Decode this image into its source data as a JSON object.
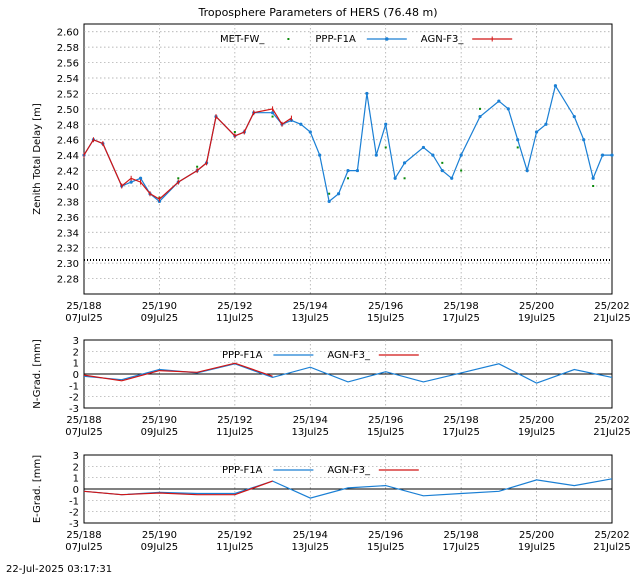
{
  "title": "Troposphere Parameters of HERS (76.48 m)",
  "footer_timestamp": "22-Jul-2025 03:17:31",
  "colors": {
    "MET-FW_": "#0b8a0b",
    "PPP-F1A": "#1a7fd4",
    "AGN-F3_": "#d11515",
    "grid": "#a0a0a0",
    "zero_line": "#000000"
  },
  "x_axis": {
    "range": [
      "2025-07-07",
      "2025-07-21"
    ],
    "ticks": [
      {
        "date": "2025-07-07",
        "doy": "25/188",
        "label": "07Jul25"
      },
      {
        "date": "2025-07-09",
        "doy": "25/190",
        "label": "09Jul25"
      },
      {
        "date": "2025-07-11",
        "doy": "25/192",
        "label": "11Jul25"
      },
      {
        "date": "2025-07-13",
        "doy": "25/194",
        "label": "13Jul25"
      },
      {
        "date": "2025-07-15",
        "doy": "25/196",
        "label": "15Jul25"
      },
      {
        "date": "2025-07-17",
        "doy": "25/198",
        "label": "17Jul25"
      },
      {
        "date": "2025-07-19",
        "doy": "25/200",
        "label": "19Jul25"
      },
      {
        "date": "2025-07-21",
        "doy": "25/202",
        "label": "21Jul25"
      }
    ]
  },
  "chart_data": [
    {
      "type": "line",
      "title": "Troposphere Parameters of HERS (76.48 m)",
      "ylabel": "Zenith Total Delay [m]",
      "ylim": [
        2.26,
        2.61
      ],
      "yticks": [
        "2.28",
        "2.30",
        "2.32",
        "2.34",
        "2.36",
        "2.38",
        "2.40",
        "2.42",
        "2.44",
        "2.46",
        "2.48",
        "2.50",
        "2.52",
        "2.54",
        "2.56",
        "2.58",
        "2.60"
      ],
      "grid": true,
      "legend": "top",
      "series": [
        {
          "name": "MET-FW_",
          "style": "dots",
          "x": [
            "2025-07-07T00:00",
            "2025-07-07T12:00",
            "2025-07-08T00:00",
            "2025-07-08T12:00",
            "2025-07-09T00:00",
            "2025-07-09T12:00",
            "2025-07-10T00:00",
            "2025-07-10T12:00",
            "2025-07-11T00:00",
            "2025-07-11T12:00",
            "2025-07-12T00:00",
            "2025-07-12T12:00",
            "2025-07-13T00:00",
            "2025-07-13T12:00",
            "2025-07-14T00:00",
            "2025-07-14T12:00",
            "2025-07-15T00:00",
            "2025-07-15T12:00",
            "2025-07-16T00:00",
            "2025-07-16T12:00",
            "2025-07-17T00:00",
            "2025-07-17T12:00",
            "2025-07-18T00:00",
            "2025-07-18T12:00",
            "2025-07-19T00:00",
            "2025-07-19T12:00",
            "2025-07-20T00:00",
            "2025-07-20T12:00",
            "2025-07-21T00:00"
          ],
          "y": [
            2.44,
            2.455,
            2.4,
            2.41,
            2.385,
            2.41,
            2.425,
            2.49,
            2.47,
            2.495,
            2.49,
            2.485,
            2.47,
            2.39,
            2.41,
            2.52,
            2.45,
            2.41,
            2.45,
            2.43,
            2.42,
            2.5,
            2.51,
            2.45,
            2.47,
            2.53,
            2.49,
            2.4,
            2.44
          ]
        },
        {
          "name": "PPP-F1A",
          "style": "line-points",
          "x": [
            "2025-07-07T00:00",
            "2025-07-07T06:00",
            "2025-07-07T12:00",
            "2025-07-08T00:00",
            "2025-07-08T06:00",
            "2025-07-08T12:00",
            "2025-07-08T18:00",
            "2025-07-09T00:00",
            "2025-07-09T12:00",
            "2025-07-10T00:00",
            "2025-07-10T06:00",
            "2025-07-10T12:00",
            "2025-07-11T00:00",
            "2025-07-11T06:00",
            "2025-07-11T12:00",
            "2025-07-12T00:00",
            "2025-07-12T06:00",
            "2025-07-12T12:00",
            "2025-07-12T18:00",
            "2025-07-13T00:00",
            "2025-07-13T06:00",
            "2025-07-13T12:00",
            "2025-07-13T18:00",
            "2025-07-14T00:00",
            "2025-07-14T06:00",
            "2025-07-14T12:00",
            "2025-07-14T18:00",
            "2025-07-15T00:00",
            "2025-07-15T06:00",
            "2025-07-15T12:00",
            "2025-07-16T00:00",
            "2025-07-16T06:00",
            "2025-07-16T12:00",
            "2025-07-16T18:00",
            "2025-07-17T00:00",
            "2025-07-17T12:00",
            "2025-07-18T00:00",
            "2025-07-18T06:00",
            "2025-07-18T12:00",
            "2025-07-18T18:00",
            "2025-07-19T00:00",
            "2025-07-19T06:00",
            "2025-07-19T12:00",
            "2025-07-20T00:00",
            "2025-07-20T06:00",
            "2025-07-20T12:00",
            "2025-07-20T18:00",
            "2025-07-21T00:00"
          ],
          "y": [
            2.44,
            2.46,
            2.455,
            2.4,
            2.405,
            2.41,
            2.39,
            2.38,
            2.405,
            2.42,
            2.43,
            2.49,
            2.465,
            2.47,
            2.495,
            2.495,
            2.48,
            2.485,
            2.48,
            2.47,
            2.44,
            2.38,
            2.39,
            2.42,
            2.42,
            2.52,
            2.44,
            2.48,
            2.41,
            2.43,
            2.45,
            2.44,
            2.42,
            2.41,
            2.44,
            2.49,
            2.51,
            2.5,
            2.46,
            2.42,
            2.47,
            2.48,
            2.53,
            2.49,
            2.46,
            2.41,
            2.44,
            2.44
          ]
        },
        {
          "name": "AGN-F3_",
          "style": "line-ticks",
          "x": [
            "2025-07-07T00:00",
            "2025-07-07T06:00",
            "2025-07-07T12:00",
            "2025-07-08T00:00",
            "2025-07-08T06:00",
            "2025-07-08T12:00",
            "2025-07-08T18:00",
            "2025-07-09T00:00",
            "2025-07-09T12:00",
            "2025-07-10T00:00",
            "2025-07-10T06:00",
            "2025-07-10T12:00",
            "2025-07-11T00:00",
            "2025-07-11T06:00",
            "2025-07-11T12:00",
            "2025-07-12T00:00",
            "2025-07-12T06:00",
            "2025-07-12T12:00"
          ],
          "y": [
            2.44,
            2.46,
            2.455,
            2.4,
            2.41,
            2.405,
            2.39,
            2.383,
            2.405,
            2.42,
            2.43,
            2.49,
            2.465,
            2.47,
            2.495,
            2.5,
            2.48,
            2.488
          ]
        },
        {
          "name": "",
          "style": "dotted-baseline",
          "x": [
            "2025-07-07T00:00",
            "2025-07-21T00:00"
          ],
          "y": [
            2.304,
            2.304
          ]
        }
      ]
    },
    {
      "type": "line",
      "ylabel": "N-Grad. [mm]",
      "ylim": [
        -3,
        3
      ],
      "yticks": [
        "-3",
        "-2",
        "-1",
        "0",
        "1",
        "2",
        "3"
      ],
      "grid": true,
      "legend": "top",
      "series": [
        {
          "name": "PPP-F1A",
          "x": [
            "2025-07-07",
            "2025-07-08",
            "2025-07-09",
            "2025-07-10",
            "2025-07-11",
            "2025-07-12",
            "2025-07-13",
            "2025-07-14",
            "2025-07-15",
            "2025-07-16",
            "2025-07-17",
            "2025-07-18",
            "2025-07-19",
            "2025-07-20",
            "2025-07-21"
          ],
          "y": [
            -0.2,
            -0.5,
            0.4,
            0.1,
            0.9,
            -0.3,
            0.6,
            -0.7,
            0.2,
            -0.7,
            0.1,
            0.9,
            -0.8,
            0.4,
            -0.3
          ]
        },
        {
          "name": "AGN-F3_",
          "x": [
            "2025-07-07",
            "2025-07-08",
            "2025-07-09",
            "2025-07-10",
            "2025-07-11",
            "2025-07-12"
          ],
          "y": [
            -0.1,
            -0.6,
            0.3,
            0.15,
            0.95,
            -0.2
          ]
        }
      ]
    },
    {
      "type": "line",
      "ylabel": "E-Grad. [mm]",
      "ylim": [
        -3,
        3
      ],
      "yticks": [
        "-3",
        "-2",
        "-1",
        "0",
        "1",
        "2",
        "3"
      ],
      "grid": true,
      "legend": "top",
      "series": [
        {
          "name": "PPP-F1A",
          "x": [
            "2025-07-07",
            "2025-07-08",
            "2025-07-09",
            "2025-07-10",
            "2025-07-11",
            "2025-07-12",
            "2025-07-13",
            "2025-07-14",
            "2025-07-15",
            "2025-07-16",
            "2025-07-17",
            "2025-07-18",
            "2025-07-19",
            "2025-07-20",
            "2025-07-21"
          ],
          "y": [
            -0.2,
            -0.5,
            -0.3,
            -0.4,
            -0.4,
            0.7,
            -0.8,
            0.1,
            0.3,
            -0.6,
            -0.4,
            -0.2,
            0.8,
            0.3,
            0.9
          ]
        },
        {
          "name": "AGN-F3_",
          "x": [
            "2025-07-07",
            "2025-07-08",
            "2025-07-09",
            "2025-07-10",
            "2025-07-11",
            "2025-07-12"
          ],
          "y": [
            -0.2,
            -0.5,
            -0.35,
            -0.5,
            -0.5,
            0.7
          ]
        }
      ]
    }
  ]
}
